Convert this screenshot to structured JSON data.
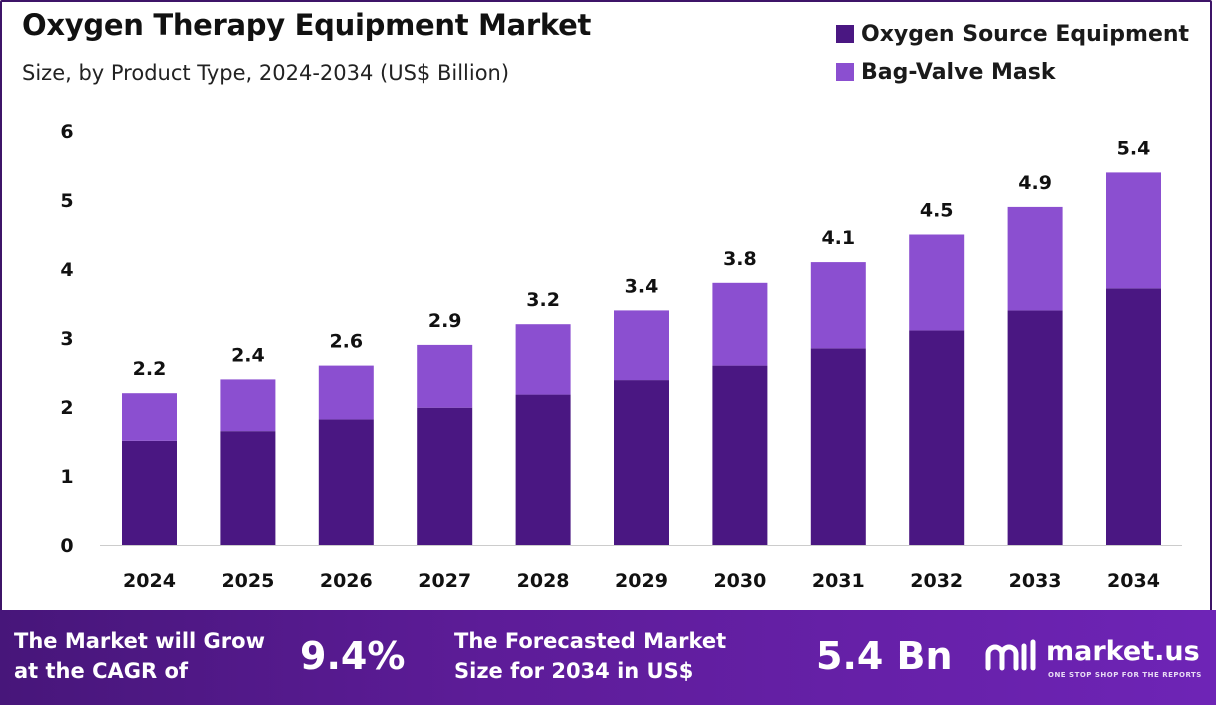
{
  "header": {
    "title": "Oxygen Therapy Equipment Market",
    "subtitle": "Size, by Product Type, 2024-2034 (US$ Billion)"
  },
  "legend": {
    "items": [
      {
        "label": "Oxygen Source Equipment",
        "color": "#4a1782"
      },
      {
        "label": "Bag-Valve Mask",
        "color": "#8b4fd0"
      }
    ]
  },
  "chart_data": {
    "type": "bar",
    "stacked": true,
    "title": "Oxygen Therapy Equipment Market",
    "subtitle": "Size, by Product Type, 2024-2034 (US$ Billion)",
    "categories": [
      "2024",
      "2025",
      "2026",
      "2027",
      "2028",
      "2029",
      "2030",
      "2031",
      "2032",
      "2033",
      "2034"
    ],
    "series": [
      {
        "name": "Oxygen Source Equipment",
        "color": "#4a1782",
        "values": [
          1.51,
          1.65,
          1.82,
          1.99,
          2.18,
          2.39,
          2.6,
          2.85,
          3.11,
          3.4,
          3.72
        ]
      },
      {
        "name": "Bag-Valve Mask",
        "color": "#8b4fd0",
        "values": [
          0.69,
          0.75,
          0.78,
          0.91,
          1.02,
          1.01,
          1.2,
          1.25,
          1.39,
          1.5,
          1.68
        ]
      }
    ],
    "totals": [
      2.2,
      2.4,
      2.6,
      2.9,
      3.2,
      3.4,
      3.8,
      4.1,
      4.5,
      4.9,
      5.4
    ],
    "total_labels": [
      "2.2",
      "2.4",
      "2.6",
      "2.9",
      "3.2",
      "3.4",
      "3.8",
      "4.1",
      "4.5",
      "4.9",
      "5.4"
    ],
    "y_ticks": [
      0,
      1,
      2,
      3,
      4,
      5,
      6
    ],
    "ylim": [
      0,
      6
    ],
    "xlabel": "",
    "ylabel": "",
    "grid": false,
    "legend_position": "top-right"
  },
  "footer": {
    "cagr_text": "The Market will Grow\nat the CAGR of",
    "cagr_value": "9.4%",
    "forecast_text": "The Forecasted Market\nSize for 2034 in US$",
    "forecast_value": "5.4 Bn",
    "brand_name": "market.us",
    "brand_tagline": "ONE STOP SHOP FOR THE REPORTS",
    "brand_icon": "market-us-logo-icon"
  }
}
